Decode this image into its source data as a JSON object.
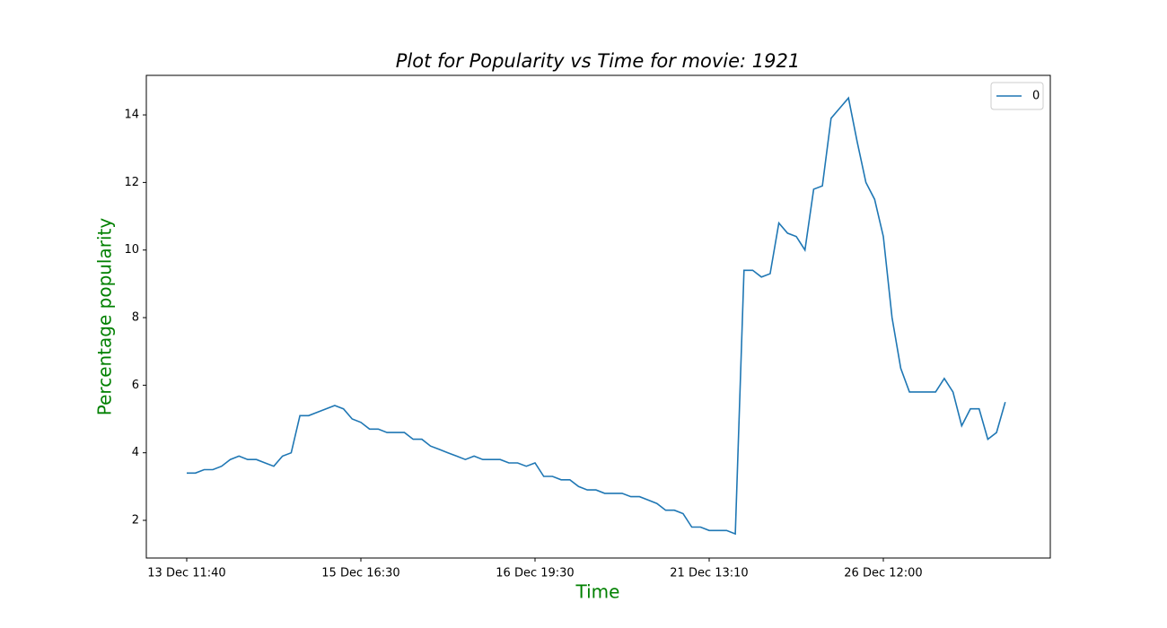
{
  "chart_data": {
    "type": "line",
    "title": "Plot for Popularity vs Time for movie: 1921",
    "x_label": "Time",
    "y_label": "Percentage popularity",
    "categories": [
      "13 Dec 11:40",
      null,
      null,
      null,
      null,
      null,
      null,
      null,
      null,
      null,
      null,
      null,
      null,
      null,
      null,
      null,
      null,
      null,
      null,
      null,
      "15 Dec 16:30",
      null,
      null,
      null,
      null,
      null,
      null,
      null,
      null,
      null,
      null,
      null,
      null,
      null,
      null,
      null,
      null,
      null,
      null,
      null,
      "16 Dec 19:30",
      null,
      null,
      null,
      null,
      null,
      null,
      null,
      null,
      null,
      null,
      null,
      null,
      null,
      null,
      null,
      null,
      null,
      null,
      null,
      "21 Dec 13:10",
      null,
      null,
      null,
      null,
      null,
      null,
      null,
      null,
      null,
      null,
      null,
      null,
      null,
      null,
      null,
      null,
      null,
      null,
      null,
      "26 Dec 12:00",
      null,
      null,
      null,
      null,
      null,
      null,
      null,
      null,
      null,
      null,
      null,
      null,
      null,
      null
    ],
    "series": [
      {
        "name": "0",
        "color": "#1f77b4",
        "values": [
          3.4,
          3.4,
          3.5,
          3.5,
          3.6,
          3.8,
          3.9,
          3.8,
          3.8,
          3.7,
          3.6,
          3.9,
          4.0,
          5.1,
          5.1,
          5.2,
          5.3,
          5.4,
          5.3,
          5.0,
          4.9,
          4.7,
          4.7,
          4.6,
          4.6,
          4.6,
          4.4,
          4.4,
          4.2,
          4.1,
          4.0,
          3.9,
          3.8,
          3.9,
          3.8,
          3.8,
          3.8,
          3.7,
          3.7,
          3.6,
          3.7,
          3.3,
          3.3,
          3.2,
          3.2,
          3.0,
          2.9,
          2.9,
          2.8,
          2.8,
          2.8,
          2.7,
          2.7,
          2.6,
          2.5,
          2.3,
          2.3,
          2.2,
          1.8,
          1.8,
          1.7,
          1.7,
          1.7,
          1.6,
          9.4,
          9.4,
          9.2,
          9.3,
          10.8,
          10.5,
          10.4,
          10.0,
          11.8,
          11.9,
          13.9,
          14.2,
          14.5,
          13.2,
          12.0,
          11.5,
          10.4,
          8.0,
          6.5,
          5.8,
          5.8,
          5.8,
          5.8,
          6.2,
          5.8,
          4.8,
          5.3,
          5.3,
          4.4,
          4.6,
          5.5
        ]
      }
    ],
    "ylim": [
      0.885,
      15.17
    ],
    "yticks": [
      2,
      4,
      6,
      8,
      10,
      12,
      14
    ],
    "legend": "upper right"
  }
}
